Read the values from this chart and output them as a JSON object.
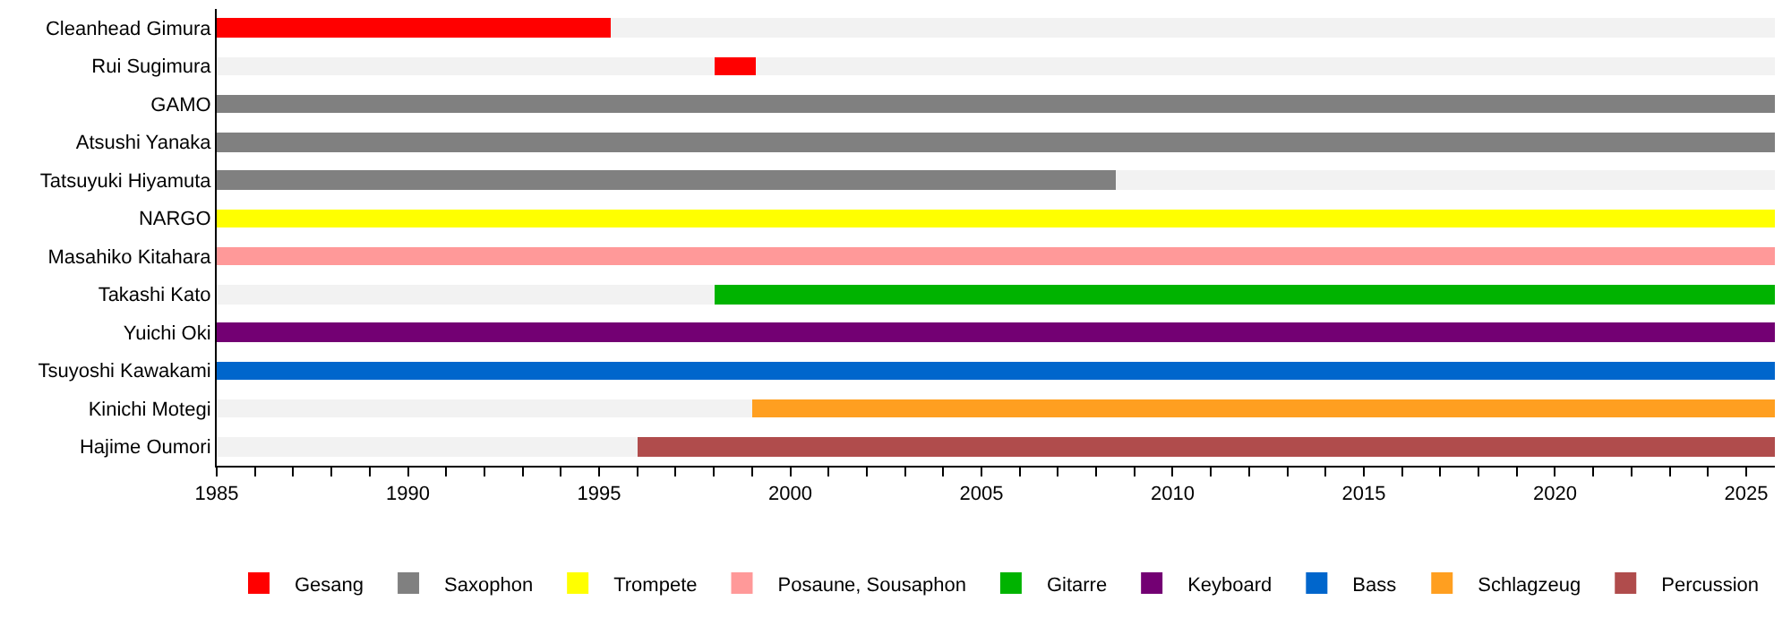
{
  "chart_data": {
    "type": "bar",
    "orientation": "horizontal",
    "categories": [
      "Cleanhead Gimura",
      "Rui Sugimura",
      "GAMO",
      "Atsushi Yanaka",
      "Tatsuyuki Hiyamuta",
      "NARGO",
      "Masahiko Kitahara",
      "Takashi Kato",
      "Yuichi Oki",
      "Tsuyoshi Kawakami",
      "Kinichi Motegi",
      "Hajime Oumori"
    ],
    "series": [
      {
        "color": "#f2f2f2",
        "base": [
          null,
          1985,
          null,
          null,
          null,
          null,
          null,
          1985,
          null,
          null,
          1985,
          1985
        ],
        "values": [
          null,
          13,
          null,
          null,
          null,
          null,
          null,
          13,
          null,
          null,
          14,
          11
        ]
      },
      {
        "color": "#f2f2f2",
        "base": [
          1995.3,
          1999.1,
          null,
          null,
          2008.5,
          null,
          null,
          null,
          null,
          null,
          null,
          null
        ],
        "values": [
          30.45,
          26.65,
          null,
          null,
          17.25,
          null,
          null,
          null,
          null,
          null,
          null,
          null
        ]
      },
      {
        "name": "Gesang",
        "color": "#ff0000",
        "base": [
          1985,
          1998,
          null,
          null,
          null,
          null,
          null,
          null,
          null,
          null,
          null,
          null
        ],
        "values": [
          10.3,
          1.1,
          null,
          null,
          null,
          null,
          null,
          null,
          null,
          null,
          null,
          null
        ]
      },
      {
        "name": "Saxophon",
        "color": "#808080",
        "base": [
          null,
          null,
          1985,
          1985,
          1985,
          null,
          null,
          null,
          null,
          null,
          null,
          null
        ],
        "values": [
          null,
          null,
          40.75,
          40.75,
          23.5,
          null,
          null,
          null,
          null,
          null,
          null,
          null
        ]
      },
      {
        "name": "Trompete",
        "color": "#ffff00",
        "base": [
          null,
          null,
          null,
          null,
          null,
          1985,
          null,
          null,
          null,
          null,
          null,
          null
        ],
        "values": [
          null,
          null,
          null,
          null,
          null,
          40.75,
          null,
          null,
          null,
          null,
          null,
          null
        ]
      },
      {
        "name": "Posaune, Sousaphon",
        "color": "#ff9999",
        "base": [
          null,
          null,
          null,
          null,
          null,
          null,
          1985,
          null,
          null,
          null,
          null,
          null
        ],
        "values": [
          null,
          null,
          null,
          null,
          null,
          null,
          40.75,
          null,
          null,
          null,
          null,
          null
        ]
      },
      {
        "name": "Gitarre",
        "color": "#00b300",
        "base": [
          null,
          null,
          null,
          null,
          null,
          null,
          null,
          1998,
          null,
          null,
          null,
          null
        ],
        "values": [
          null,
          null,
          null,
          null,
          null,
          null,
          null,
          27.75,
          null,
          null,
          null,
          null
        ]
      },
      {
        "name": "Keyboard",
        "color": "#730073",
        "base": [
          null,
          null,
          null,
          null,
          null,
          null,
          null,
          null,
          1985,
          null,
          null,
          null
        ],
        "values": [
          null,
          null,
          null,
          null,
          null,
          null,
          null,
          null,
          40.75,
          null,
          null,
          null
        ]
      },
      {
        "name": "Bass",
        "color": "#0066cc",
        "base": [
          null,
          null,
          null,
          null,
          null,
          null,
          null,
          null,
          null,
          1985,
          null,
          null
        ],
        "values": [
          null,
          null,
          null,
          null,
          null,
          null,
          null,
          null,
          null,
          40.75,
          null,
          null
        ]
      },
      {
        "name": "Schlagzeug",
        "color": "#ff9f20",
        "base": [
          null,
          null,
          null,
          null,
          null,
          null,
          null,
          null,
          null,
          null,
          1999,
          null
        ],
        "values": [
          null,
          null,
          null,
          null,
          null,
          null,
          null,
          null,
          null,
          null,
          26.75,
          null
        ]
      },
      {
        "name": "Percussion",
        "color": "#b04c4c",
        "base": [
          null,
          null,
          null,
          null,
          null,
          null,
          null,
          null,
          null,
          null,
          null,
          1996
        ],
        "values": [
          null,
          null,
          null,
          null,
          null,
          null,
          null,
          null,
          null,
          null,
          null,
          29.75
        ]
      }
    ],
    "xlim": [
      1985,
      2025.75
    ],
    "xticks": [
      1985,
      {
        "value": 1986,
        "label": null
      },
      {
        "value": 1987,
        "label": null
      },
      {
        "value": 1988,
        "label": null
      },
      {
        "value": 1989,
        "label": null
      },
      1990,
      {
        "value": 1991,
        "label": null
      },
      {
        "value": 1992,
        "label": null
      },
      {
        "value": 1993,
        "label": null
      },
      {
        "value": 1994,
        "label": null
      },
      1995,
      {
        "value": 1996,
        "label": null
      },
      {
        "value": 1997,
        "label": null
      },
      {
        "value": 1998,
        "label": null
      },
      {
        "value": 1999,
        "label": null
      },
      2000,
      {
        "value": 2001,
        "label": null
      },
      {
        "value": 2002,
        "label": null
      },
      {
        "value": 2003,
        "label": null
      },
      {
        "value": 2004,
        "label": null
      },
      2005,
      {
        "value": 2006,
        "label": null
      },
      {
        "value": 2007,
        "label": null
      },
      {
        "value": 2008,
        "label": null
      },
      {
        "value": 2009,
        "label": null
      },
      2010,
      {
        "value": 2011,
        "label": null
      },
      {
        "value": 2012,
        "label": null
      },
      {
        "value": 2013,
        "label": null
      },
      {
        "value": 2014,
        "label": null
      },
      2015,
      {
        "value": 2016,
        "label": null
      },
      {
        "value": 2017,
        "label": null
      },
      {
        "value": 2018,
        "label": null
      },
      {
        "value": 2019,
        "label": null
      },
      2020,
      {
        "value": 2021,
        "label": null
      },
      {
        "value": 2022,
        "label": null
      },
      {
        "value": 2023,
        "label": null
      },
      {
        "value": 2024,
        "label": null
      },
      2025
    ],
    "legend": "bottom"
  }
}
